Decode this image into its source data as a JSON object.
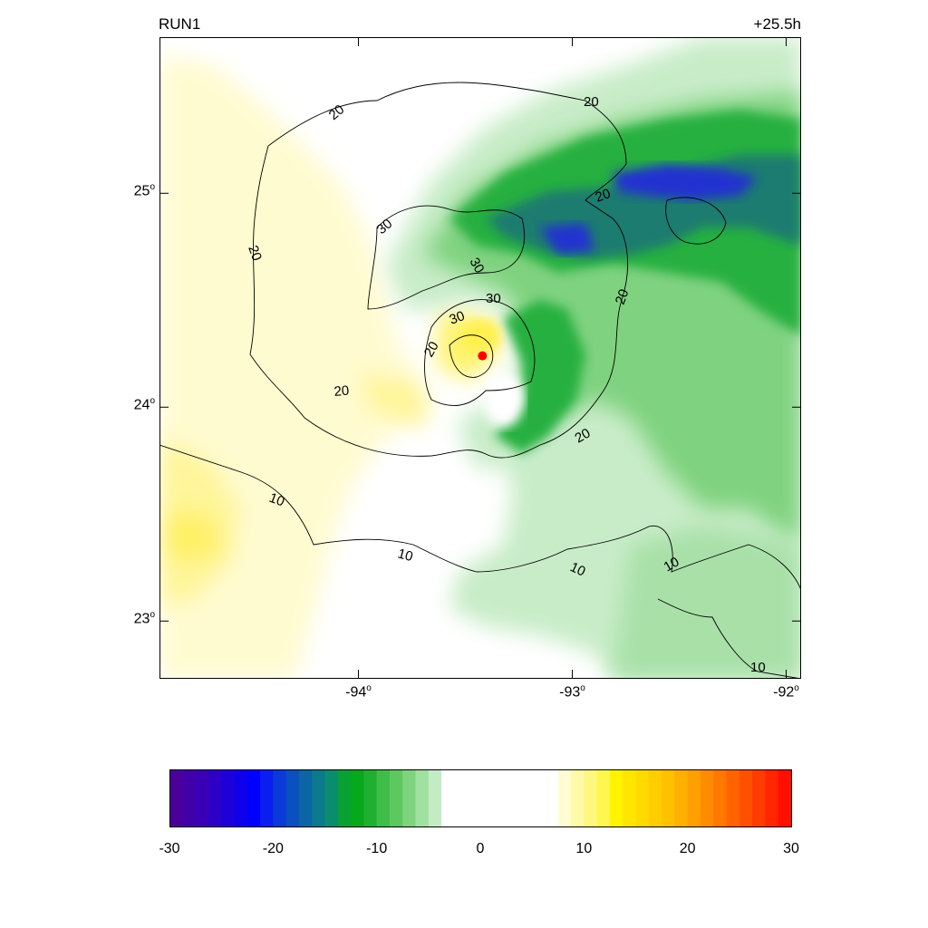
{
  "header": {
    "run_label": "RUN1",
    "forecast_time": "+25.5h"
  },
  "map": {
    "lat_labels": [
      {
        "base": "25",
        "deg": "o",
        "value": 25
      },
      {
        "base": "24",
        "deg": "o",
        "value": 24
      },
      {
        "base": "23",
        "deg": "o",
        "value": 23
      }
    ],
    "lon_labels": [
      {
        "base": "-94",
        "deg": "o",
        "value": -94
      },
      {
        "base": "-93",
        "deg": "o",
        "value": -93
      },
      {
        "base": "-92",
        "deg": "o",
        "value": -92
      }
    ],
    "lon_range": [
      -94.93,
      -91.93
    ],
    "lat_range": [
      22.73,
      25.73
    ],
    "contour_labels": [
      "20",
      "20",
      "20",
      "20",
      "20",
      "20",
      "20",
      "20",
      "30",
      "30",
      "30",
      "30",
      "10",
      "10",
      "10",
      "10",
      "10"
    ],
    "center_marker": {
      "lon": -93.42,
      "lat": 24.24,
      "color": "#ff0000"
    },
    "colors": {
      "positive": "#ffff00",
      "negative": "#00a020",
      "strong_negative": "#0000ff",
      "contour": "#000000"
    }
  },
  "colorbar": {
    "min": -30,
    "max": 30,
    "tick_labels": [
      "-30",
      "-20",
      "-10",
      "0",
      "10",
      "20",
      "30"
    ],
    "colors": [
      "#4a0099",
      "#4100a8",
      "#3a00b6",
      "#2d00c8",
      "#1e00d9",
      "#0f00ea",
      "#0000ff",
      "#0a1ef0",
      "#0a3ad8",
      "#0a50c0",
      "#0a66a6",
      "#0a7a8c",
      "#0a8c6e",
      "#09a034",
      "#06a81c",
      "#20b030",
      "#40bc48",
      "#5ec860",
      "#7ed47e",
      "#a0e0a0",
      "#c4ecc4",
      "#ffffff",
      "#ffffff",
      "#ffffff",
      "#ffffff",
      "#ffffff",
      "#ffffff",
      "#ffffff",
      "#ffffff",
      "#ffffff",
      "#fffcd4",
      "#fffaa8",
      "#fff880",
      "#fff650",
      "#fff300",
      "#ffe600",
      "#ffda00",
      "#ffcd00",
      "#ffc000",
      "#ffb000",
      "#ffa000",
      "#ff8c00",
      "#ff7800",
      "#ff6400",
      "#ff5000",
      "#ff3c00",
      "#ff2600",
      "#ff1000"
    ]
  }
}
